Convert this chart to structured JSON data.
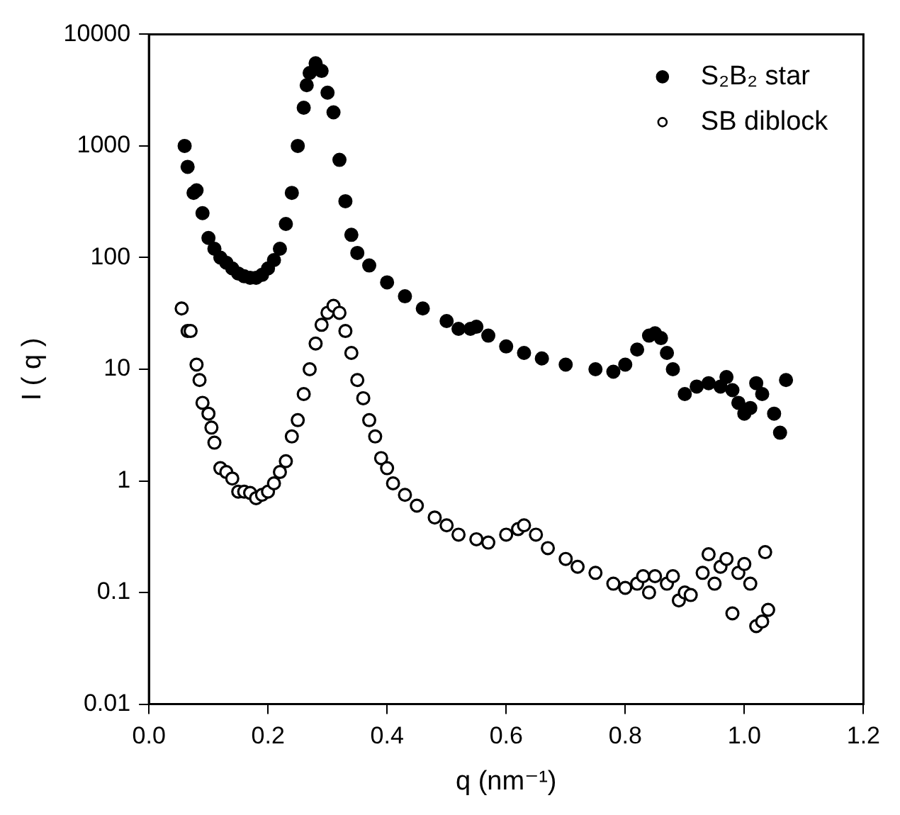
{
  "chart_data": {
    "type": "scatter",
    "xlabel": "q (nm⁻¹)",
    "ylabel": "I ( q )",
    "log": "y",
    "grid": false,
    "legend": "top right",
    "marker": "circle",
    "xlim": [
      0,
      1.2
    ],
    "xticks": [
      {
        "value": 0,
        "label": "0.0"
      },
      0.2,
      0.4,
      0.6,
      0.8,
      {
        "value": 1,
        "label": "1.0"
      },
      1.2
    ],
    "ylim": [
      0.01,
      10000
    ],
    "yticks": [
      0.01,
      0.1,
      1,
      10,
      100,
      1000,
      10000
    ],
    "series": [
      {
        "name": "S₂B₂ star",
        "color": "#000000",
        "x": [
          0.06,
          0.065,
          0.075,
          0.08,
          0.09,
          0.1,
          0.11,
          0.12,
          0.13,
          0.14,
          0.15,
          0.16,
          0.17,
          0.18,
          0.19,
          0.2,
          0.21,
          0.22,
          0.23,
          0.24,
          0.25,
          0.26,
          0.265,
          0.27,
          0.28,
          0.29,
          0.3,
          0.31,
          0.32,
          0.33,
          0.34,
          0.35,
          0.37,
          0.4,
          0.43,
          0.46,
          0.5,
          0.52,
          0.54,
          0.55,
          0.57,
          0.6,
          0.63,
          0.66,
          0.7,
          0.75,
          0.78,
          0.8,
          0.82,
          0.84,
          0.85,
          0.86,
          0.87,
          0.88,
          0.9,
          0.92,
          0.94,
          0.96,
          0.97,
          0.98,
          0.99,
          1.0,
          1.01,
          1.02,
          1.03,
          1.05,
          1.06,
          1.07
        ],
        "values": [
          1000,
          650,
          380,
          400,
          250,
          150,
          120,
          100,
          90,
          80,
          72,
          68,
          66,
          66,
          70,
          80,
          95,
          120,
          200,
          380,
          1000,
          2200,
          3500,
          4500,
          5500,
          4700,
          3000,
          2000,
          750,
          320,
          160,
          110,
          85,
          60,
          45,
          35,
          27,
          23,
          23,
          24,
          20,
          16,
          14,
          12.5,
          11,
          10,
          9.5,
          11,
          15,
          20,
          21,
          19,
          14,
          10,
          6,
          7,
          7.5,
          7,
          8.5,
          6.5,
          5,
          4,
          4.5,
          7.5,
          6,
          4,
          2.7,
          8
        ]
      },
      {
        "name": "SB diblock",
        "color": "#000000",
        "x": [
          0.055,
          0.065,
          0.07,
          0.08,
          0.085,
          0.09,
          0.1,
          0.105,
          0.11,
          0.12,
          0.13,
          0.14,
          0.15,
          0.16,
          0.17,
          0.18,
          0.19,
          0.2,
          0.21,
          0.22,
          0.23,
          0.24,
          0.25,
          0.26,
          0.27,
          0.28,
          0.29,
          0.3,
          0.31,
          0.32,
          0.33,
          0.34,
          0.35,
          0.36,
          0.37,
          0.38,
          0.39,
          0.4,
          0.41,
          0.43,
          0.45,
          0.48,
          0.5,
          0.52,
          0.55,
          0.57,
          0.6,
          0.62,
          0.63,
          0.65,
          0.67,
          0.7,
          0.72,
          0.75,
          0.78,
          0.8,
          0.82,
          0.83,
          0.84,
          0.85,
          0.87,
          0.88,
          0.89,
          0.9,
          0.91,
          0.93,
          0.94,
          0.95,
          0.96,
          0.97,
          0.98,
          0.99,
          1.0,
          1.01,
          1.02,
          1.03,
          1.035,
          1.04
        ],
        "values": [
          35,
          22,
          22,
          11,
          8,
          5,
          4,
          3,
          2.2,
          1.3,
          1.2,
          1.05,
          0.8,
          0.8,
          0.78,
          0.7,
          0.75,
          0.8,
          0.95,
          1.2,
          1.5,
          2.5,
          3.5,
          6,
          10,
          17,
          25,
          32,
          37,
          32,
          22,
          14,
          8,
          5.5,
          3.5,
          2.5,
          1.6,
          1.3,
          0.95,
          0.75,
          0.6,
          0.47,
          0.4,
          0.33,
          0.3,
          0.28,
          0.33,
          0.37,
          0.4,
          0.33,
          0.25,
          0.2,
          0.17,
          0.15,
          0.12,
          0.11,
          0.12,
          0.14,
          0.1,
          0.14,
          0.12,
          0.14,
          0.085,
          0.1,
          0.095,
          0.15,
          0.22,
          0.12,
          0.17,
          0.2,
          0.065,
          0.15,
          0.18,
          0.12,
          0.05,
          0.055,
          0.23,
          0.07
        ]
      }
    ]
  }
}
